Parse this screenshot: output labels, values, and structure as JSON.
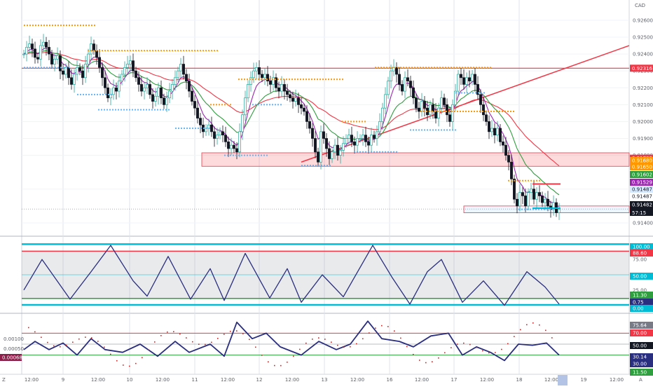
{
  "currency": "CAD",
  "timezone_label": "Z",
  "tz_abbrev": "A",
  "chart_data": [
    {
      "type": "candlestick",
      "name": "price",
      "ylim": [
        0.9135,
        0.9272
      ],
      "y_ticks": [
        0.914,
        0.916,
        0.918,
        0.919,
        0.92,
        0.921,
        0.922,
        0.923,
        0.924,
        0.925,
        0.926
      ],
      "x_ticks": [
        "12:00",
        "9",
        "12:00",
        "10",
        "12:00",
        "11",
        "12:00",
        "12",
        "12:00",
        "13",
        "12:00",
        "16",
        "12:00",
        "17",
        "12:00",
        "18",
        "12:00",
        "19",
        "12:00"
      ],
      "closes": [
        0.924,
        0.9244,
        0.9246,
        0.9243,
        0.9238,
        0.9237,
        0.9245,
        0.9247,
        0.9244,
        0.924,
        0.9234,
        0.9237,
        0.9239,
        0.923,
        0.9228,
        0.9232,
        0.9226,
        0.9222,
        0.9228,
        0.9232,
        0.923,
        0.9226,
        0.9234,
        0.924,
        0.9246,
        0.9242,
        0.9238,
        0.9232,
        0.9226,
        0.922,
        0.9214,
        0.9216,
        0.922,
        0.9218,
        0.9224,
        0.9228,
        0.9232,
        0.9234,
        0.9236,
        0.923,
        0.9226,
        0.9222,
        0.9218,
        0.922,
        0.9222,
        0.9216,
        0.9212,
        0.9215,
        0.922,
        0.9214,
        0.921,
        0.9214,
        0.9218,
        0.9222,
        0.9226,
        0.923,
        0.9234,
        0.9228,
        0.9224,
        0.9218,
        0.9212,
        0.9208,
        0.9202,
        0.9198,
        0.9194,
        0.9196,
        0.9198,
        0.9194,
        0.919,
        0.9192,
        0.9194,
        0.9192,
        0.9188,
        0.9184,
        0.9186,
        0.9184,
        0.9182,
        0.9194,
        0.9204,
        0.9214,
        0.9222,
        0.9226,
        0.923,
        0.9232,
        0.9228,
        0.9226,
        0.9228,
        0.9224,
        0.9222,
        0.9226,
        0.922,
        0.9218,
        0.9222,
        0.9218,
        0.9216,
        0.9214,
        0.9212,
        0.9214,
        0.921,
        0.9208,
        0.9206,
        0.92,
        0.9196,
        0.919,
        0.9182,
        0.9176,
        0.9194,
        0.919,
        0.9184,
        0.9178,
        0.9182,
        0.9186,
        0.918,
        0.9183,
        0.9187,
        0.919,
        0.9192,
        0.9188,
        0.9186,
        0.919,
        0.919,
        0.9192,
        0.9188,
        0.9186,
        0.9192,
        0.919,
        0.9194,
        0.92,
        0.9208,
        0.9216,
        0.9224,
        0.923,
        0.9232,
        0.9228,
        0.9222,
        0.9218,
        0.9226,
        0.9224,
        0.922,
        0.9214,
        0.9208,
        0.9206,
        0.9212,
        0.9208,
        0.9204,
        0.921,
        0.9206,
        0.9202,
        0.9208,
        0.9214,
        0.921,
        0.9204,
        0.92,
        0.921,
        0.9218,
        0.9228,
        0.9226,
        0.9222,
        0.9226,
        0.9224,
        0.9228,
        0.9222,
        0.9216,
        0.921,
        0.9204,
        0.92,
        0.9194,
        0.9196,
        0.9192,
        0.9196,
        0.9188,
        0.9186,
        0.918,
        0.9176,
        0.9166,
        0.9154,
        0.915,
        0.9158,
        0.9156,
        0.915,
        0.9158,
        0.916,
        0.9154,
        0.9158,
        0.9156,
        0.9152,
        0.9154,
        0.915,
        0.9148,
        0.9152,
        0.9146,
        0.9148
      ]
    },
    {
      "type": "line",
      "name": "oscillator",
      "ylim": [
        -5,
        105
      ],
      "y_ticks": [
        75.0,
        25.0
      ],
      "levels": [
        100.0,
        88.6,
        50.0,
        11.3,
        0.75,
        0.0
      ],
      "current_value": 0.75
    },
    {
      "type": "line",
      "name": "momentum",
      "y_ticks": [
        "0.00100",
        "0.00050"
      ],
      "current_value": "0.00068",
      "levels": [
        75.64,
        70.0,
        50.0,
        30.14,
        30.0,
        11.5
      ]
    }
  ],
  "price_scale_labels": [
    {
      "value": "0.92316",
      "bg": "#f23645",
      "fg": "#ffffff"
    },
    {
      "value": "0.91783",
      "bg": "#f23645",
      "fg": "#ffffff"
    },
    {
      "value": "0.91680",
      "bg": "#ff9800",
      "fg": "#ffffff"
    },
    {
      "value": "0.91650",
      "bg": "#ff9800",
      "fg": "#ffffff"
    },
    {
      "value": "0.91602",
      "bg": "#2e9e3e",
      "fg": "#ffffff"
    },
    {
      "value": "0.91529",
      "bg": "#9c27b0",
      "fg": "#ffffff"
    },
    {
      "value": "0.91487",
      "bg": "#d6eaff",
      "fg": "#131722"
    },
    {
      "value": "0.91487",
      "bg": "#ffffff",
      "fg": "#131722"
    },
    {
      "value": "0.91482",
      "bg": "#131722",
      "fg": "#ffffff"
    }
  ],
  "countdown": "57:15",
  "colors": {
    "up": "#26a69a",
    "down": "#131722",
    "resistance": "#f23645",
    "support_dots": "#64b5f6",
    "resistance_dots": "#ff9800",
    "ema_fast": "#9c27b0",
    "ema_mid": "#2e9e3e",
    "ema_slow": "#f23645",
    "osc_line": "#2a2e7f",
    "cyan": "#00bcd4"
  }
}
